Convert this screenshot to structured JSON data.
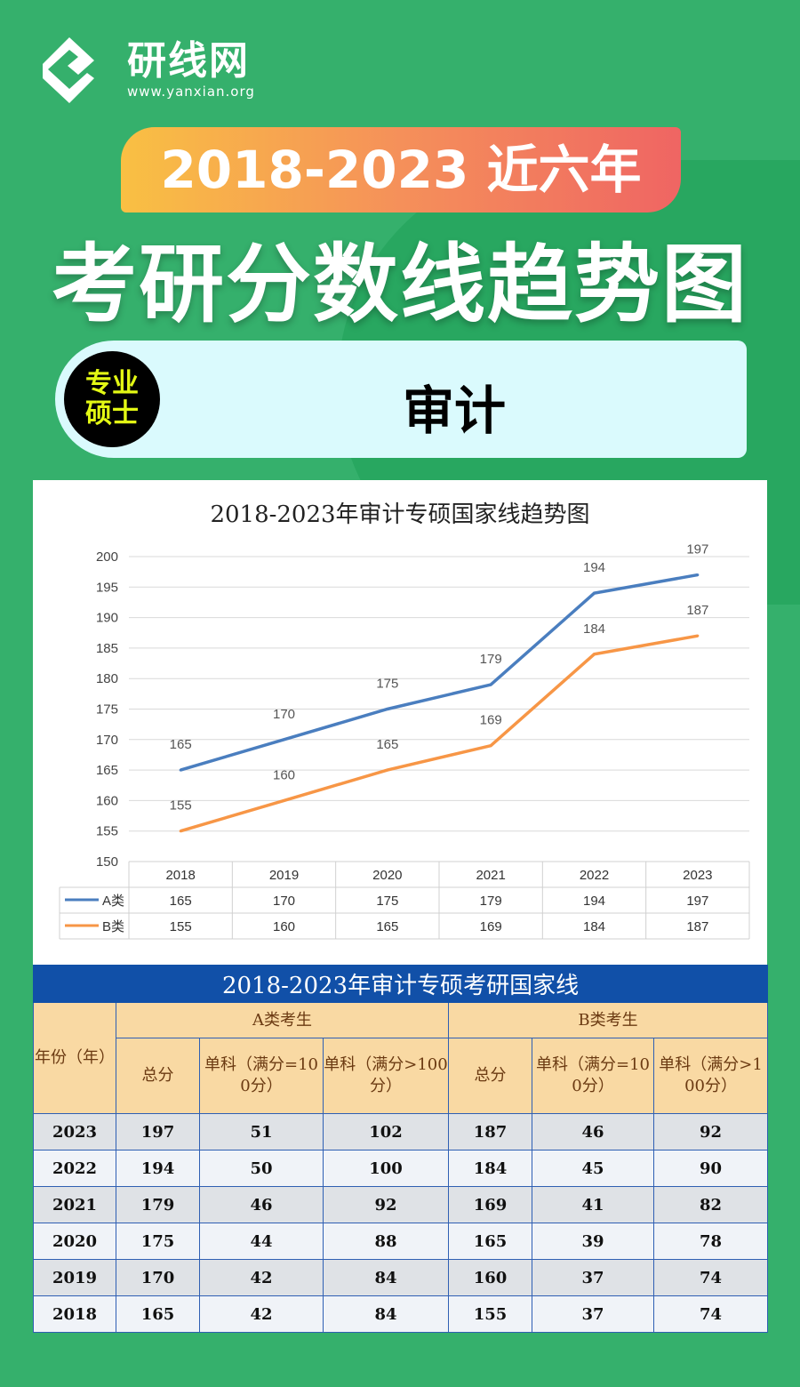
{
  "brand": {
    "name": "研线网",
    "url": "www.yanxian.org"
  },
  "header": {
    "range": "2018-2023 近六年",
    "title": "考研分数线趋势图"
  },
  "subject": {
    "badge_line1": "专业",
    "badge_line2": "硕士",
    "name": "审计"
  },
  "colors": {
    "series_a": "#4a7ebf",
    "series_b": "#f79646",
    "table_header": "#1150a8",
    "header_fill": "#f9d9a3"
  },
  "chart_data": {
    "type": "line",
    "title": "2018-2023年审计专硕国家线趋势图",
    "categories": [
      "2018",
      "2019",
      "2020",
      "2021",
      "2022",
      "2023"
    ],
    "series": [
      {
        "name": "A类",
        "values": [
          165,
          170,
          175,
          179,
          194,
          197
        ]
      },
      {
        "name": "B类",
        "values": [
          155,
          160,
          165,
          169,
          184,
          187
        ]
      }
    ],
    "yticks": [
      "150",
      "155",
      "160",
      "165",
      "170",
      "175",
      "180",
      "185",
      "190",
      "195",
      "200"
    ],
    "ylim": [
      150,
      200
    ],
    "grid": true,
    "legend": "data-table-bottom"
  },
  "table": {
    "title": "2018-2023年审计专硕考研国家线",
    "year_header": "年份（年）",
    "group_a": "A类考生",
    "group_b": "B类考生",
    "sub_headers": [
      "总分",
      "单科（满分=100分）",
      "单科（满分>100分）",
      "总分",
      "单科（满分=100分）",
      "单科（满分>100分）"
    ],
    "rows": [
      [
        "2023",
        "197",
        "51",
        "102",
        "187",
        "46",
        "92"
      ],
      [
        "2022",
        "194",
        "50",
        "100",
        "184",
        "45",
        "90"
      ],
      [
        "2021",
        "179",
        "46",
        "92",
        "169",
        "41",
        "82"
      ],
      [
        "2020",
        "175",
        "44",
        "88",
        "165",
        "39",
        "78"
      ],
      [
        "2019",
        "170",
        "42",
        "84",
        "160",
        "37",
        "74"
      ],
      [
        "2018",
        "165",
        "42",
        "84",
        "155",
        "37",
        "74"
      ]
    ]
  }
}
